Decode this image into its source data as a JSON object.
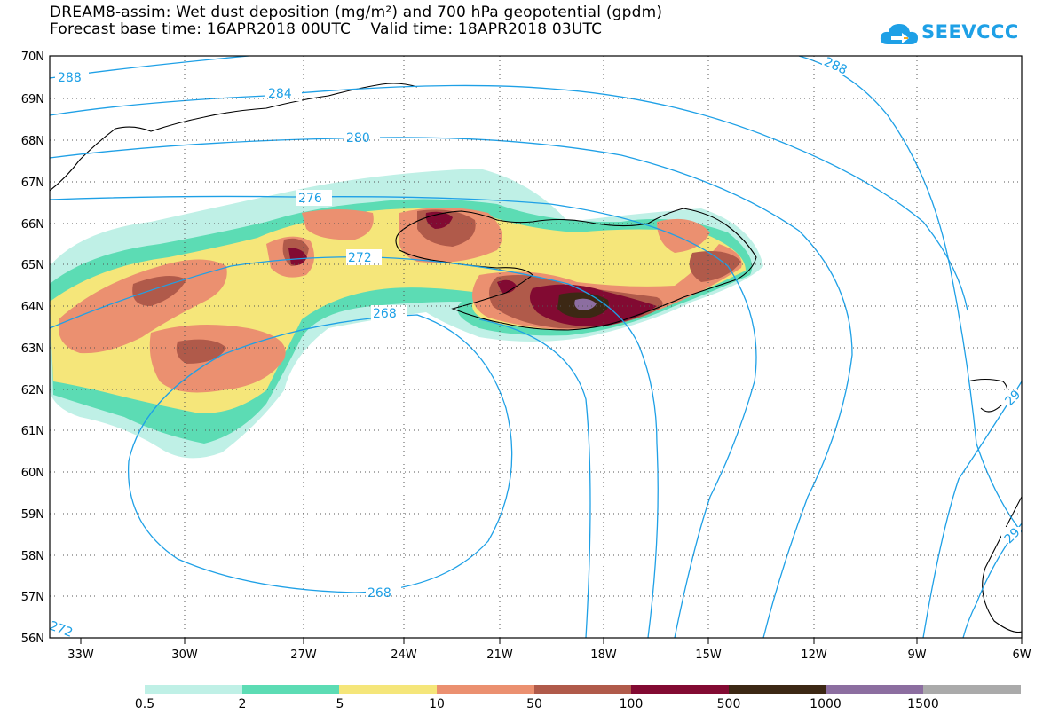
{
  "title": {
    "line1": "DREAM8-assim: Wet dust deposition (mg/m²) and 700 hPa geopotential (gpdm)",
    "line2": "Forecast base time: 16APR2018 00UTC    Valid time: 18APR2018 03UTC"
  },
  "logo": {
    "text": "SEEVCCC",
    "icon": "cloud-arrow-icon",
    "color": "#1ea0e6"
  },
  "map": {
    "lat_labels": [
      "70N",
      "69N",
      "68N",
      "67N",
      "66N",
      "65N",
      "64N",
      "63N",
      "62N",
      "61N",
      "60N",
      "59N",
      "58N",
      "57N",
      "56N"
    ],
    "lon_labels": [
      "33W",
      "30W",
      "27W",
      "24W",
      "21W",
      "18W",
      "15W",
      "12W",
      "9W",
      "6W"
    ],
    "contour_labels": [
      {
        "id": "c288a",
        "text": "288"
      },
      {
        "id": "c288b",
        "text": "288"
      },
      {
        "id": "c284",
        "text": "284"
      },
      {
        "id": "c280",
        "text": "280"
      },
      {
        "id": "c276",
        "text": "276"
      },
      {
        "id": "c272a",
        "text": "272"
      },
      {
        "id": "c272b",
        "text": "272"
      },
      {
        "id": "c268a",
        "text": "268"
      },
      {
        "id": "c268b",
        "text": "268"
      },
      {
        "id": "c29a",
        "text": "29"
      },
      {
        "id": "c29b",
        "text": "29"
      }
    ],
    "contour_color": "#1ea0e6",
    "coast_color": "#000000"
  },
  "legend": {
    "colors": [
      "#bff0e6",
      "#5cdcb4",
      "#f5e67a",
      "#eb9070",
      "#b05a4a",
      "#820a32",
      "#3c2814",
      "#8c6ea0",
      "#aaaaaa"
    ],
    "labels": [
      "0.5",
      "2",
      "5",
      "10",
      "50",
      "100",
      "500",
      "1000",
      "1500"
    ]
  }
}
